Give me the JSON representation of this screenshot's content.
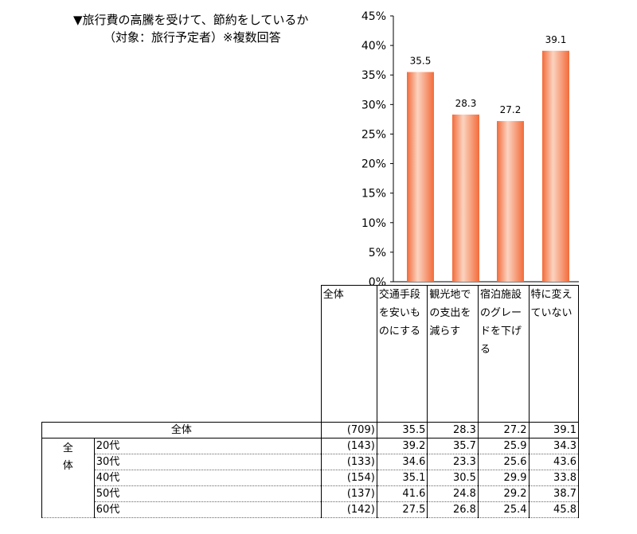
{
  "title": {
    "line1": "▼旅行費の高騰を受けて、節約をしているか",
    "line2": "（対象：旅行予定者）※複数回答"
  },
  "chart_data": {
    "type": "bar",
    "categories": [
      "交通手段を安いものにする",
      "観光地での支出を減らす",
      "宿泊施設のグレードを下げる",
      "特に変えていない"
    ],
    "values": [
      35.5,
      28.3,
      27.2,
      39.1
    ],
    "data_labels": [
      "35.5",
      "28.3",
      "27.2",
      "39.1"
    ],
    "ylim": [
      0,
      45
    ],
    "yticks": [
      "0%",
      "5%",
      "10%",
      "15%",
      "20%",
      "25%",
      "30%",
      "35%",
      "40%",
      "45%"
    ],
    "bar_color": "#f26b3a",
    "bar_highlight": "#fbd3c0",
    "grid": false
  },
  "table": {
    "header_total": "全体",
    "header_cats": [
      "交通手段を安いものにする",
      "観光地での支出を減らす",
      "宿泊施設のグレードを下げる",
      "特に変えていない"
    ],
    "total_row": {
      "label": "全体",
      "n": "(709)",
      "values": [
        "35.5",
        "28.3",
        "27.2",
        "39.1"
      ]
    },
    "group_label_1": "全",
    "group_label_2": "体",
    "rows": [
      {
        "label": "20代",
        "n": "(143)",
        "values": [
          "39.2",
          "35.7",
          "25.9",
          "34.3"
        ]
      },
      {
        "label": "30代",
        "n": "(133)",
        "values": [
          "34.6",
          "23.3",
          "25.6",
          "43.6"
        ]
      },
      {
        "label": "40代",
        "n": "(154)",
        "values": [
          "35.1",
          "30.5",
          "29.9",
          "33.8"
        ]
      },
      {
        "label": "50代",
        "n": "(137)",
        "values": [
          "41.6",
          "24.8",
          "29.2",
          "38.7"
        ]
      },
      {
        "label": "60代",
        "n": "(142)",
        "values": [
          "27.5",
          "26.8",
          "25.4",
          "45.8"
        ]
      }
    ]
  }
}
